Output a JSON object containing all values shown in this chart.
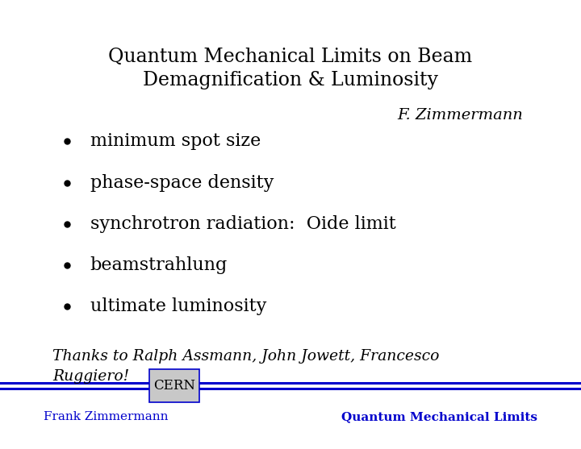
{
  "title_line1": "Quantum Mechanical Limits on Beam",
  "title_line2": "Demagnification & Luminosity",
  "author": "F. Zimmermann",
  "bullet_items": [
    "minimum spot size",
    "phase-space density",
    "synchrotron radiation:  Oide limit",
    "beamstrahlung",
    "ultimate luminosity"
  ],
  "thanks_line1": "Thanks to Ralph Assmann, John Jowett, Francesco",
  "thanks_line2": "Ruggiero!",
  "footer_left": "Frank Zimmermann",
  "footer_right": "Quantum Mechanical Limits",
  "cern_label": "CERN",
  "title_color": "#000000",
  "author_color": "#000000",
  "bullet_color": "#000000",
  "thanks_color": "#000000",
  "footer_color": "#0000cc",
  "line_color": "#0000cc",
  "cern_box_facecolor": "#c8c8c8",
  "bg_color": "#ffffff",
  "title_fontsize": 17,
  "author_fontsize": 14,
  "bullet_fontsize": 16,
  "thanks_fontsize": 13.5,
  "footer_fontsize": 11
}
